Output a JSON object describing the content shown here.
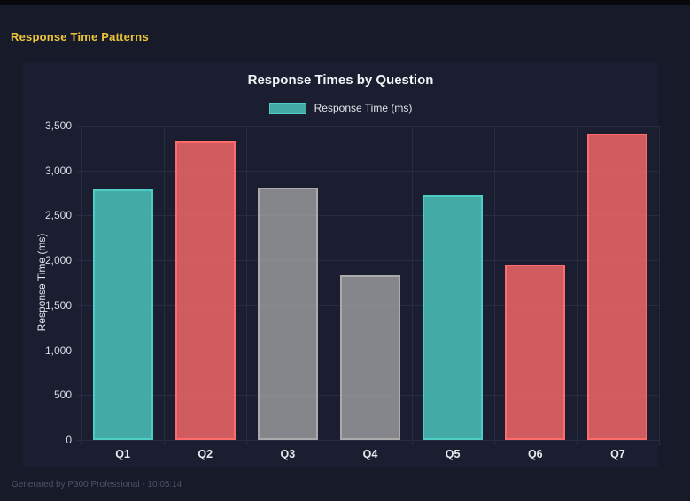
{
  "header": {
    "title": "Response Time Patterns"
  },
  "footer": {
    "text": "Generated by P300 Professional - 10:05:14"
  },
  "chart_data": {
    "type": "bar",
    "title": "Response Times by Question",
    "legend_label": "Response Time (ms)",
    "legend_position": "top",
    "categories": [
      "Q1",
      "Q2",
      "Q3",
      "Q4",
      "Q5",
      "Q6",
      "Q7"
    ],
    "values": [
      2790,
      3330,
      2810,
      1835,
      2730,
      1950,
      3410
    ],
    "xlabel": "",
    "ylabel": "Response Time (ms)",
    "ylim": [
      0,
      3500
    ],
    "ytick_step": 500,
    "grid": true,
    "bar_color_keys": [
      "teal",
      "red",
      "gray",
      "gray",
      "teal",
      "red",
      "red"
    ],
    "palette": {
      "teal": {
        "fill": "rgba(78,205,196,0.8)",
        "border": "#4ECDC4"
      },
      "red": {
        "fill": "rgba(255,107,107,0.8)",
        "border": "#FF6B6B"
      },
      "gray": {
        "fill": "rgba(170,170,170,0.75)",
        "border": "#AAAAAA"
      }
    }
  },
  "colors": {
    "page_bg": "#171a28",
    "panel_bg": "#1b1e30",
    "top_strip": "#08080d",
    "header_text": "#edc53a",
    "grid_line": "#272c40",
    "tick_text": "#d8dbe4",
    "footer_text": "#4e5368",
    "title_text": "#f2f3f7"
  }
}
